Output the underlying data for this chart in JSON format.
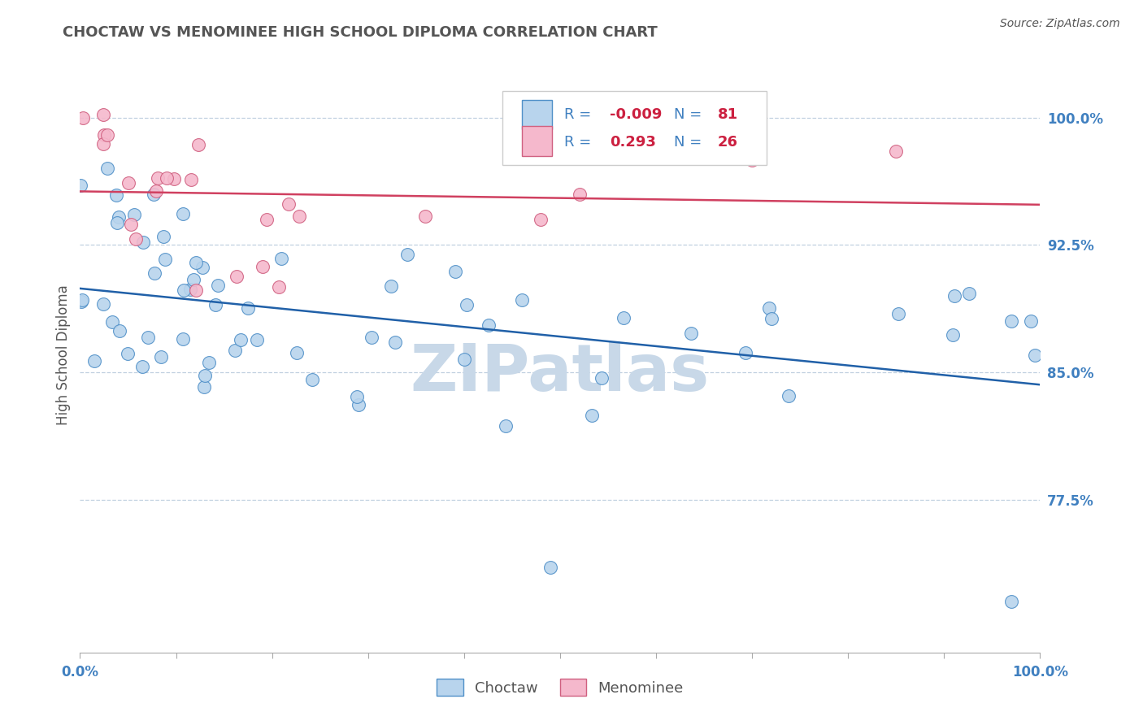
{
  "title": "CHOCTAW VS MENOMINEE HIGH SCHOOL DIPLOMA CORRELATION CHART",
  "source": "Source: ZipAtlas.com",
  "ylabel": "High School Diploma",
  "y_tick_labels": [
    "100.0%",
    "92.5%",
    "85.0%",
    "77.5%"
  ],
  "y_ticks": [
    1.0,
    0.925,
    0.85,
    0.775
  ],
  "xlim": [
    0.0,
    1.0
  ],
  "ylim": [
    0.685,
    1.035
  ],
  "choctaw_fill": "#b8d4ed",
  "choctaw_edge": "#5090c8",
  "menominee_fill": "#f5b8cc",
  "menominee_edge": "#d06080",
  "choctaw_line_color": "#2060a8",
  "menominee_line_color": "#d04060",
  "watermark": "ZIPatlas",
  "legend_R_choctaw": "-0.009",
  "legend_N_choctaw": "81",
  "legend_R_menominee": "0.293",
  "legend_N_menominee": "26",
  "background_color": "#ffffff",
  "grid_color": "#c0d0e0",
  "watermark_color": "#c8d8e8",
  "tick_color": "#4080c0",
  "label_color": "#555555"
}
